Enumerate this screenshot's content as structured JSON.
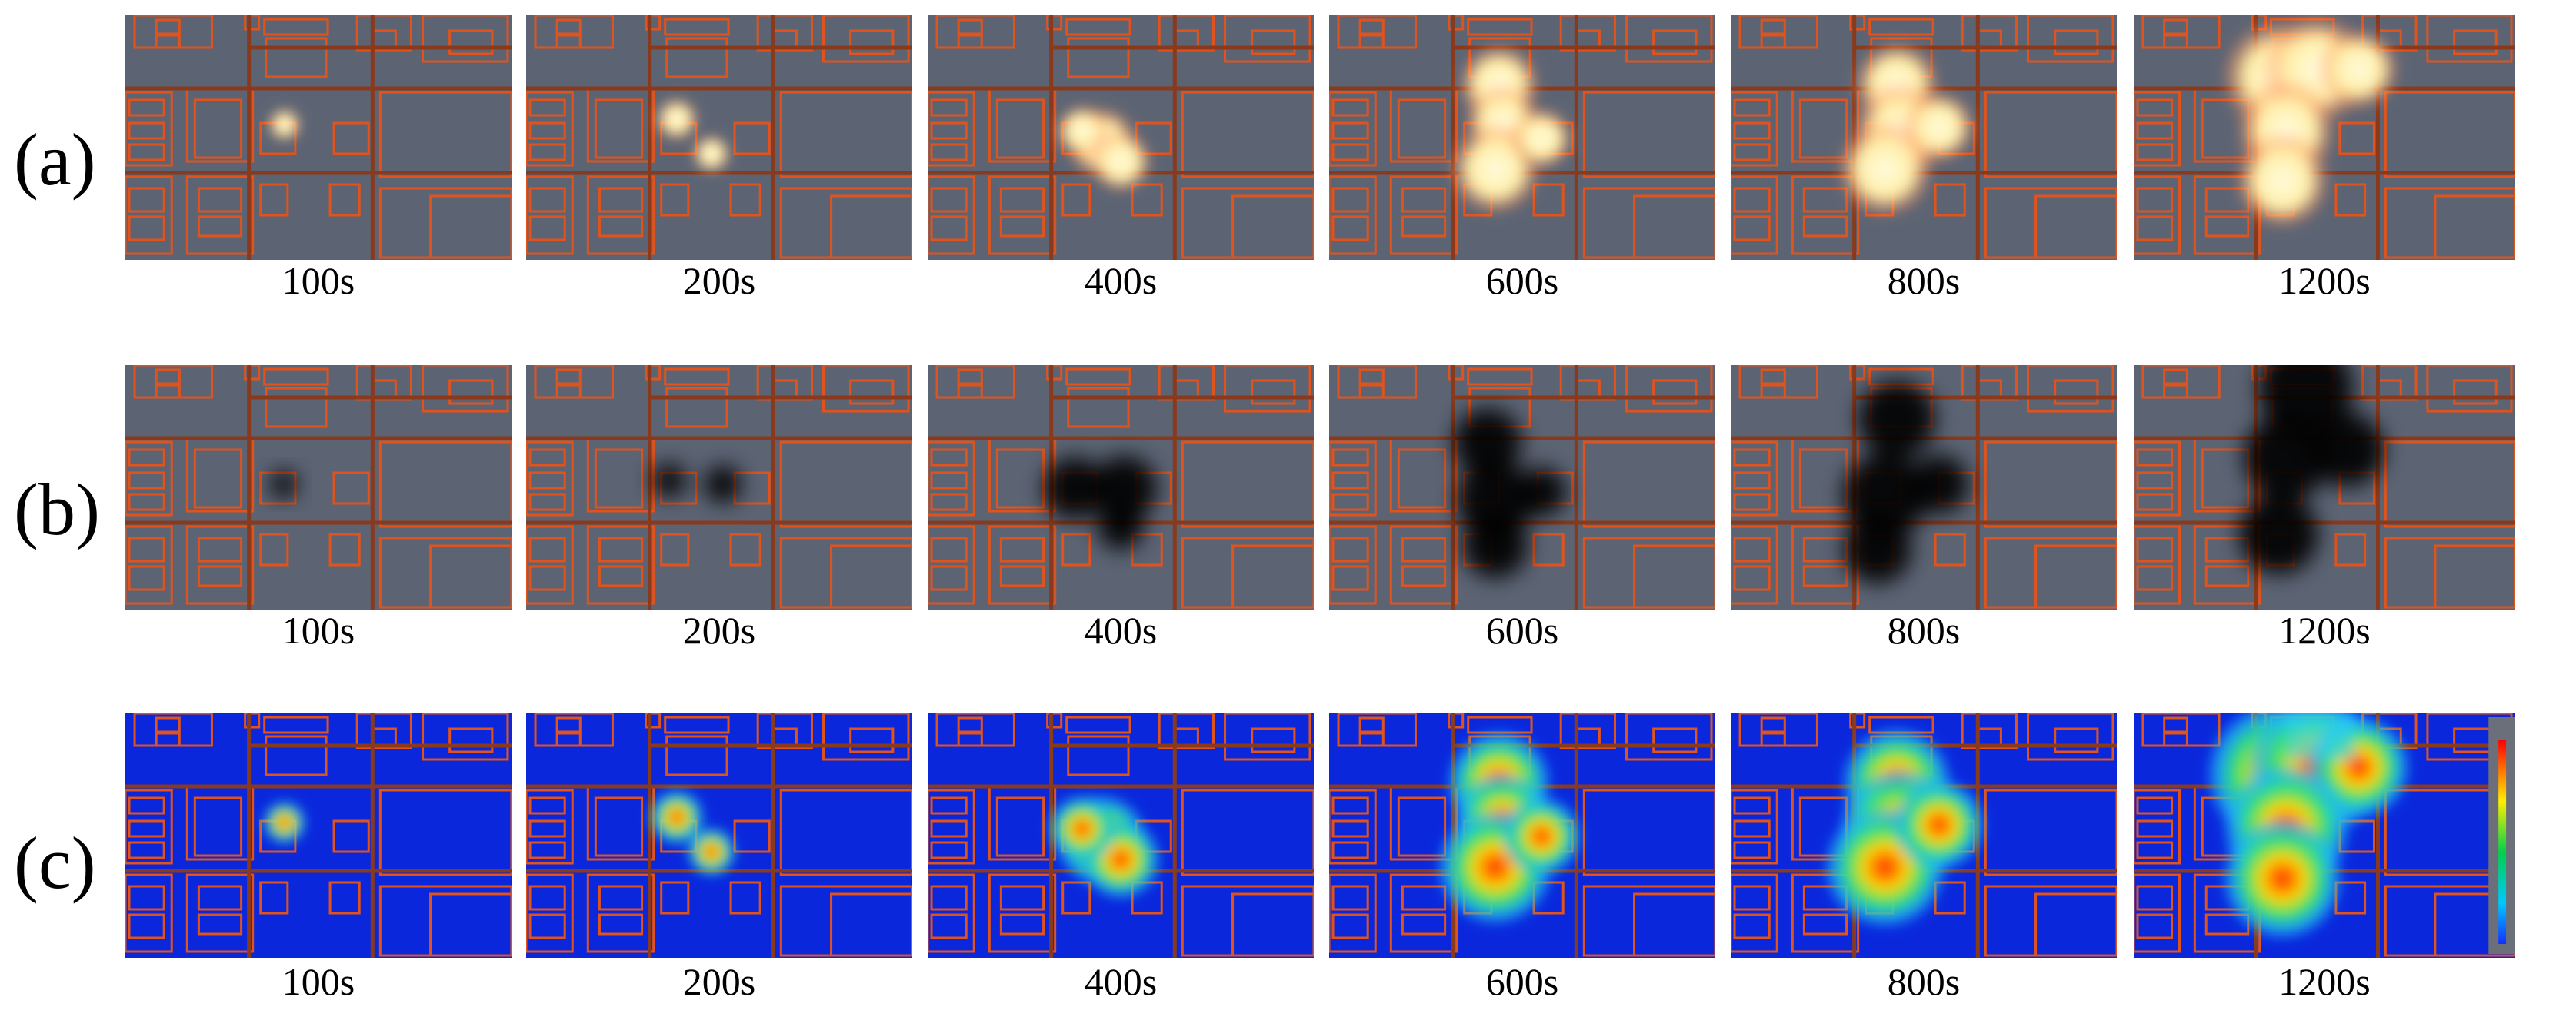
{
  "rows": [
    {
      "label": "(a)",
      "mode": "fire",
      "times": [
        "100s",
        "200s",
        "400s",
        "600s",
        "800s",
        "1200s"
      ]
    },
    {
      "label": "(b)",
      "mode": "smoke",
      "times": [
        "100s",
        "200s",
        "400s",
        "600s",
        "800s",
        "1200s"
      ]
    },
    {
      "label": "(c)",
      "mode": "heat",
      "times": [
        "100s",
        "200s",
        "400s",
        "600s",
        "800s",
        "1200s"
      ]
    }
  ],
  "colors": {
    "floor_gray": "#5c6474",
    "floor_blue": "#0a27dc",
    "wall": "#e2531c",
    "wall_dark": "#8a3a1c",
    "smoke": "#000000",
    "fire_core": "#fffbe0",
    "fire_glow": "#ff6a3a"
  }
}
